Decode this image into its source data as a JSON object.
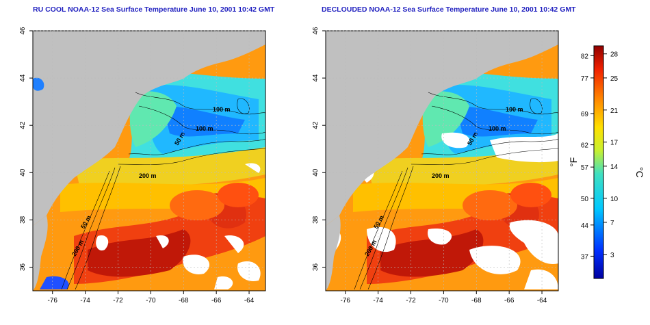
{
  "titles": {
    "left": "RU COOL NOAA-12 Sea Surface Temperature June 10, 2001 10:42 GMT",
    "right": "DECLOUDED NOAA-12 Sea Surface Temperature June 10, 2001 10:42 GMT"
  },
  "axes": {
    "lon_ticks": [
      "-76",
      "-74",
      "-72",
      "-70",
      "-68",
      "-66",
      "-64"
    ],
    "lat_ticks": [
      "36",
      "38",
      "40",
      "42",
      "44",
      "46"
    ],
    "lon_range": [
      -77.2,
      -63.0
    ],
    "lat_range": [
      35.0,
      46.0
    ]
  },
  "contour_labels": {
    "left": [
      "100 m",
      "100 m",
      "50 m",
      "200 m",
      "50 m",
      "200 m"
    ],
    "right": [
      "100 m",
      "100 m",
      "50 m",
      "200 m",
      "50 m",
      "200 m"
    ]
  },
  "colorbar": {
    "fahrenheit_unit": "°F",
    "celsius_unit": "°C",
    "fahrenheit_ticks": [
      "82",
      "77",
      "69",
      "62",
      "57",
      "50",
      "44",
      "37"
    ],
    "celsius_ticks": [
      "28",
      "25",
      "21",
      "17",
      "14",
      "10",
      "7",
      "3"
    ],
    "celsius_range": [
      0,
      29
    ]
  },
  "colors": {
    "land": "#c0c0c0",
    "cloud": "#ffffff",
    "warm": "#b01010",
    "cold": "#1030c0",
    "title": "#1f1fbf"
  }
}
